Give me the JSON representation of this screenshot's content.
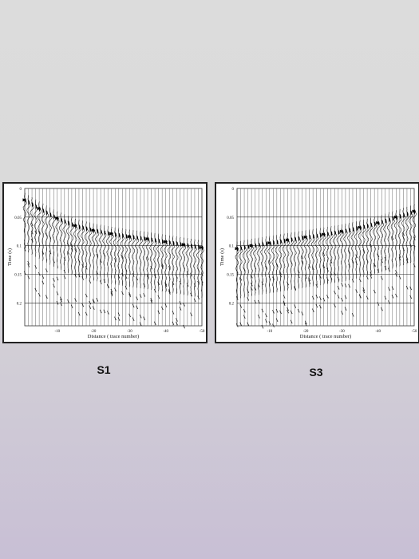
{
  "captions": {
    "left": "S1",
    "right": "S3"
  },
  "chart_data": [
    {
      "type": "scatter",
      "title": "",
      "xlabel": "Distance ( trace number)",
      "ylabel": "Time (s)",
      "xlim": [
        -1,
        -50
      ],
      "ylim": [
        0,
        0.24
      ],
      "x_ticks": [
        "-10",
        "-20",
        "-30",
        "-40",
        "-50"
      ],
      "x_tick_values": [
        -10,
        -20,
        -30,
        -40,
        -50
      ],
      "y_ticks": [
        "0",
        "0.05",
        "0.1",
        "0.15",
        "0.2"
      ],
      "y_tick_values": [
        0,
        0.05,
        0.1,
        0.15,
        0.2
      ],
      "traces": 50,
      "grid": true,
      "first_break_picks": {
        "x": [
          -1,
          -5,
          -10,
          -15,
          -20,
          -25,
          -30,
          -35,
          -40,
          -45,
          -50
        ],
        "y": [
          0.02,
          0.035,
          0.052,
          0.065,
          0.073,
          0.079,
          0.084,
          0.088,
          0.093,
          0.098,
          0.103
        ]
      }
    },
    {
      "type": "scatter",
      "title": "",
      "xlabel": "Distance ( trace number)",
      "ylabel": "Time (s)",
      "xlim": [
        -1,
        -50
      ],
      "ylim": [
        0,
        0.24
      ],
      "x_ticks": [
        "-10",
        "-20",
        "-30",
        "-40",
        "-50"
      ],
      "x_tick_values": [
        -10,
        -20,
        -30,
        -40,
        -50
      ],
      "y_ticks": [
        "0",
        "0.05",
        "0.1",
        "0.15",
        "0.2"
      ],
      "y_tick_values": [
        0,
        0.05,
        0.1,
        0.15,
        0.2
      ],
      "traces": 50,
      "grid": true,
      "first_break_picks": {
        "x": [
          -1,
          -5,
          -10,
          -15,
          -20,
          -25,
          -30,
          -35,
          -40,
          -45,
          -50
        ],
        "y": [
          0.105,
          0.1,
          0.095,
          0.09,
          0.085,
          0.08,
          0.075,
          0.068,
          0.06,
          0.05,
          0.04
        ]
      }
    }
  ]
}
